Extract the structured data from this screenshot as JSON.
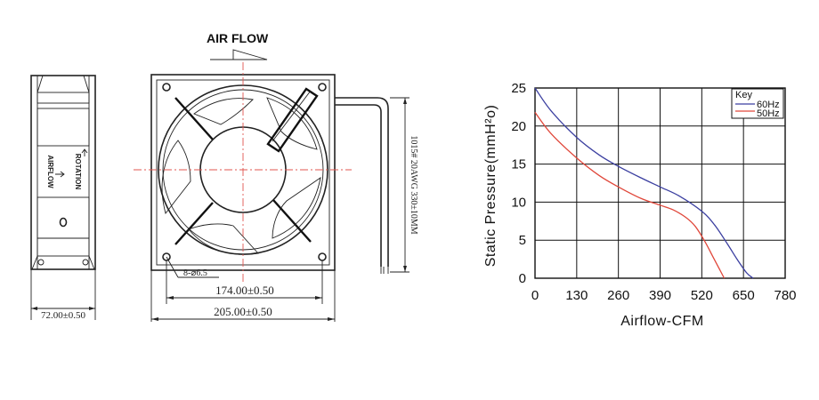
{
  "drawing": {
    "airflow_title": "AIR FLOW",
    "side_view": {
      "rotation_label": "ROTATION",
      "airflow_label": "AIRFLOW",
      "width_dim": "72.00±0.50"
    },
    "front_view": {
      "hole_callout": "8-⌀6.5",
      "hole_spacing_dim": "174.00±0.50",
      "frame_size_dim": "205.00±0.50",
      "wire_label": "1015# 20AWG  330±10MM"
    }
  },
  "chart_data": {
    "type": "line",
    "xlabel": "Airflow-CFM",
    "ylabel": "Static Pressure(mmH²o)",
    "xticks": [
      0,
      130,
      260,
      390,
      520,
      650,
      780
    ],
    "yticks": [
      0,
      5,
      10,
      15,
      20,
      25
    ],
    "xlim": [
      0,
      780
    ],
    "ylim": [
      0,
      25
    ],
    "grid": true,
    "legend": {
      "title": "Key",
      "position": "top-right"
    },
    "series": [
      {
        "name": "60Hz",
        "color": "#3b3fa0",
        "x": [
          0,
          50,
          130,
          200,
          260,
          330,
          390,
          450,
          520,
          560,
          600,
          630,
          660,
          680
        ],
        "y": [
          25,
          22,
          18.5,
          16.2,
          14.7,
          13.2,
          12.0,
          10.8,
          8.8,
          7.0,
          4.5,
          2.5,
          0.7,
          0
        ]
      },
      {
        "name": "50Hz",
        "color": "#e0473a",
        "x": [
          0,
          50,
          130,
          200,
          260,
          330,
          390,
          430,
          470,
          500,
          530,
          555,
          575,
          590
        ],
        "y": [
          21.8,
          19,
          15.8,
          13.5,
          12,
          10.5,
          9.6,
          9.0,
          8.0,
          6.8,
          4.8,
          2.8,
          1.2,
          0
        ]
      }
    ]
  }
}
